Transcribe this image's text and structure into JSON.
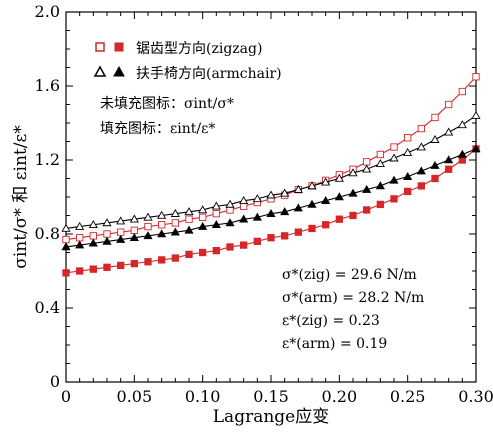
{
  "chart_data": {
    "type": "line",
    "xlabel": "Lagrange应变",
    "ylabel": "σint/σ* 和 εint/ε*",
    "xlim": [
      0,
      0.3
    ],
    "ylim": [
      0,
      2.0
    ],
    "x_ticks": [
      "0",
      "0.05",
      "0.10",
      "0.15",
      "0.20",
      "0.25",
      "0.30"
    ],
    "y_ticks": [
      "0",
      "0.4",
      "0.8",
      "1.2",
      "1.6",
      "2.0"
    ],
    "x": [
      0,
      0.01,
      0.02,
      0.03,
      0.04,
      0.05,
      0.06,
      0.07,
      0.08,
      0.09,
      0.1,
      0.11,
      0.12,
      0.13,
      0.14,
      0.15,
      0.16,
      0.17,
      0.18,
      0.19,
      0.2,
      0.21,
      0.22,
      0.23,
      0.24,
      0.25,
      0.26,
      0.27,
      0.28,
      0.29,
      0.3
    ],
    "series": [
      {
        "name": "zigzag-sigma",
        "color": "#d62728",
        "marker": "square-open",
        "values": [
          0.77,
          0.78,
          0.79,
          0.8,
          0.81,
          0.82,
          0.84,
          0.85,
          0.86,
          0.88,
          0.89,
          0.91,
          0.93,
          0.95,
          0.97,
          0.99,
          1.01,
          1.04,
          1.06,
          1.09,
          1.12,
          1.15,
          1.19,
          1.23,
          1.27,
          1.32,
          1.37,
          1.43,
          1.5,
          1.57,
          1.65
        ]
      },
      {
        "name": "zigzag-epsilon",
        "color": "#d62728",
        "marker": "square-filled",
        "values": [
          0.59,
          0.6,
          0.61,
          0.62,
          0.63,
          0.64,
          0.65,
          0.66,
          0.67,
          0.69,
          0.7,
          0.71,
          0.73,
          0.74,
          0.76,
          0.78,
          0.79,
          0.81,
          0.83,
          0.85,
          0.88,
          0.9,
          0.93,
          0.96,
          0.99,
          1.03,
          1.06,
          1.1,
          1.15,
          1.2,
          1.26
        ]
      },
      {
        "name": "armchair-sigma",
        "color": "#000000",
        "marker": "triangle-open",
        "values": [
          0.83,
          0.84,
          0.85,
          0.86,
          0.87,
          0.88,
          0.89,
          0.9,
          0.91,
          0.92,
          0.93,
          0.95,
          0.96,
          0.98,
          0.99,
          1.01,
          1.02,
          1.04,
          1.06,
          1.08,
          1.1,
          1.13,
          1.15,
          1.18,
          1.21,
          1.24,
          1.27,
          1.31,
          1.35,
          1.39,
          1.44
        ]
      },
      {
        "name": "armchair-epsilon",
        "color": "#000000",
        "marker": "triangle-filled",
        "values": [
          0.73,
          0.74,
          0.75,
          0.76,
          0.77,
          0.78,
          0.79,
          0.8,
          0.81,
          0.82,
          0.84,
          0.85,
          0.86,
          0.88,
          0.89,
          0.91,
          0.92,
          0.94,
          0.96,
          0.98,
          1.0,
          1.02,
          1.04,
          1.06,
          1.09,
          1.11,
          1.14,
          1.17,
          1.2,
          1.23,
          1.26
        ]
      }
    ],
    "legend": {
      "zigzag_label": "锯齿型方向(zigzag)",
      "armchair_label": "扶手椅方向(armchair)",
      "open_note": "未填充图标：σint/σ*",
      "filled_note": "填充图标：εint/ε*"
    },
    "annotations": [
      "σ*(zig) = 29.6 N/m",
      "σ*(arm) = 28.2 N/m",
      "ε*(zig) = 0.23",
      "ε*(arm) = 0.19"
    ]
  }
}
